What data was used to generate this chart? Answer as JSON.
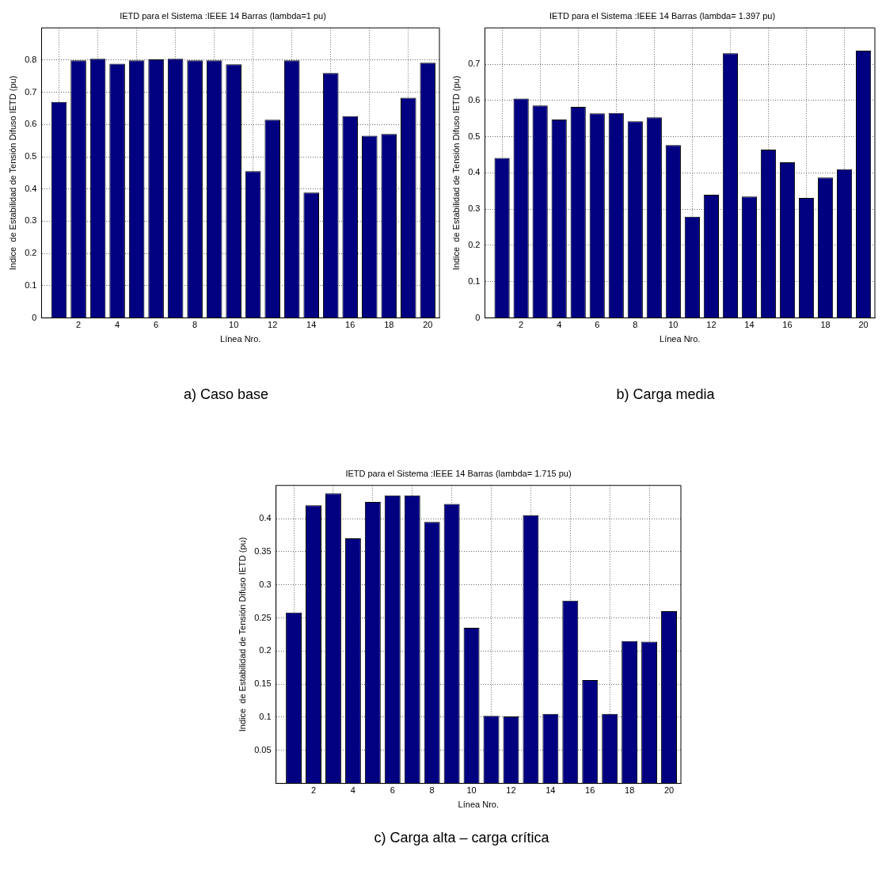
{
  "chart_data": [
    {
      "type": "bar",
      "title": "IETD para el Sistema :IEEE 14 Barras (lambda=1 pu)",
      "xlabel": "Línea Nro.",
      "ylabel": "Indice  de Estabilidad de Tensión Difuso IETD (pu)",
      "annotations": [
        "a) Caso base"
      ],
      "x": [
        1,
        2,
        3,
        4,
        5,
        6,
        7,
        8,
        9,
        10,
        11,
        12,
        13,
        14,
        15,
        16,
        17,
        18,
        19,
        20
      ],
      "values": [
        0.67,
        0.799,
        0.804,
        0.789,
        0.799,
        0.802,
        0.804,
        0.799,
        0.799,
        0.787,
        0.455,
        0.615,
        0.799,
        0.389,
        0.76,
        0.626,
        0.565,
        0.571,
        0.683,
        0.792
      ],
      "color": "#000080",
      "xlim": [
        0.1,
        20.6
      ],
      "xticks": [
        2,
        4,
        6,
        8,
        10,
        12,
        14,
        16,
        18,
        20
      ],
      "ylim": [
        0,
        0.9
      ],
      "yticks": [
        0,
        0.1,
        0.2,
        0.3,
        0.4,
        0.5,
        0.6,
        0.7,
        0.8
      ],
      "grid": true
    },
    {
      "type": "bar",
      "title": "IETD para el Sistema :IEEE 14 Barras (lambda= 1.397 pu)",
      "xlabel": "Línea Nro.",
      "ylabel": "Indice  de Estabilidad de Tensión Difuso IETD (pu)",
      "annotations": [
        "b) Carga media"
      ],
      "x": [
        1,
        2,
        3,
        4,
        5,
        6,
        7,
        8,
        9,
        10,
        11,
        12,
        13,
        14,
        15,
        16,
        17,
        18,
        19,
        20
      ],
      "values": [
        0.441,
        0.605,
        0.586,
        0.547,
        0.582,
        0.564,
        0.565,
        0.542,
        0.553,
        0.477,
        0.279,
        0.34,
        0.73,
        0.335,
        0.464,
        0.429,
        0.331,
        0.387,
        0.41,
        0.737
      ],
      "color": "#000080",
      "xlim": [
        0.1,
        20.6
      ],
      "xticks": [
        2,
        4,
        6,
        8,
        10,
        12,
        14,
        16,
        18,
        20
      ],
      "ylim": [
        0,
        0.8
      ],
      "yticks": [
        0,
        0.1,
        0.2,
        0.3,
        0.4,
        0.5,
        0.6,
        0.7
      ],
      "grid": true
    },
    {
      "type": "bar",
      "title": "IETD para el Sistema :IEEE 14 Barras (lambda= 1.715 pu)",
      "xlabel": "Línea Nro.",
      "ylabel": "Indice  de Estabilidad de Tensión Difuso IETD (pu)",
      "annotations": [
        "c) Carga alta – carga crítica"
      ],
      "x": [
        1,
        2,
        3,
        4,
        5,
        6,
        7,
        8,
        9,
        10,
        11,
        12,
        13,
        14,
        15,
        16,
        17,
        18,
        19,
        20
      ],
      "values": [
        0.258,
        0.42,
        0.438,
        0.37,
        0.425,
        0.435,
        0.435,
        0.395,
        0.422,
        0.235,
        0.102,
        0.101,
        0.405,
        0.105,
        0.276,
        0.156,
        0.105,
        0.215,
        0.214,
        0.26
      ],
      "color": "#000080",
      "xlim": [
        0.1,
        20.6
      ],
      "xticks": [
        2,
        4,
        6,
        8,
        10,
        12,
        14,
        16,
        18,
        20
      ],
      "ylim": [
        0,
        0.45
      ],
      "yticks": [
        0.05,
        0.1,
        0.15,
        0.2,
        0.25,
        0.3,
        0.35,
        0.4
      ],
      "grid": true
    }
  ]
}
